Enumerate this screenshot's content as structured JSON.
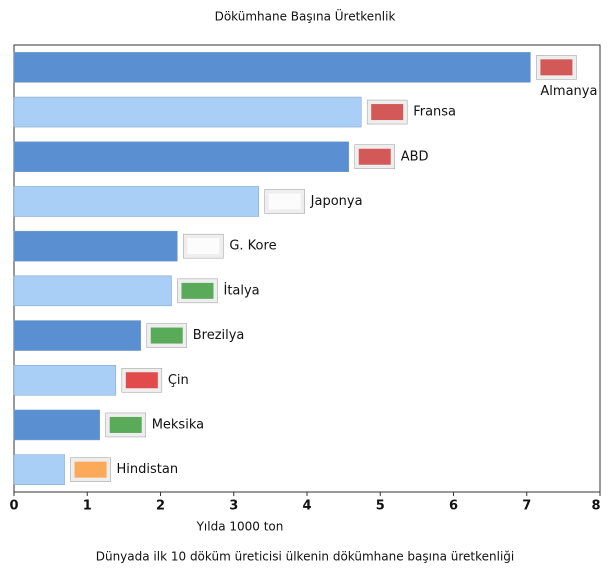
{
  "chart_data": {
    "type": "barh",
    "title": "Dökümhane Başına Üretkenlik",
    "categories": [
      "Almanya",
      "Fransa",
      "ABD",
      "Japonya",
      "G. Kore",
      "İtalya",
      "Brezilya",
      "Çin",
      "Meksika",
      "Hindistan"
    ],
    "values": [
      7.05,
      4.74,
      4.57,
      3.34,
      2.23,
      2.15,
      1.73,
      1.39,
      1.17,
      0.69
    ],
    "colors": [
      "#5a8fd1",
      "#a9cff6",
      "#5a8fd1",
      "#a9cff6",
      "#5a8fd1",
      "#a9cff6",
      "#5a8fd1",
      "#a9cff6",
      "#5a8fd1",
      "#a9cff6"
    ],
    "xlim": [
      0,
      8
    ],
    "xticks": [
      0,
      1,
      2,
      3,
      4,
      5,
      6,
      7,
      8
    ],
    "xlabel": "Yılda 1000 ton",
    "caption": "Dünyada ilk 10 döküm üreticisi ülkenin dökümhane başına üretkenliği"
  }
}
